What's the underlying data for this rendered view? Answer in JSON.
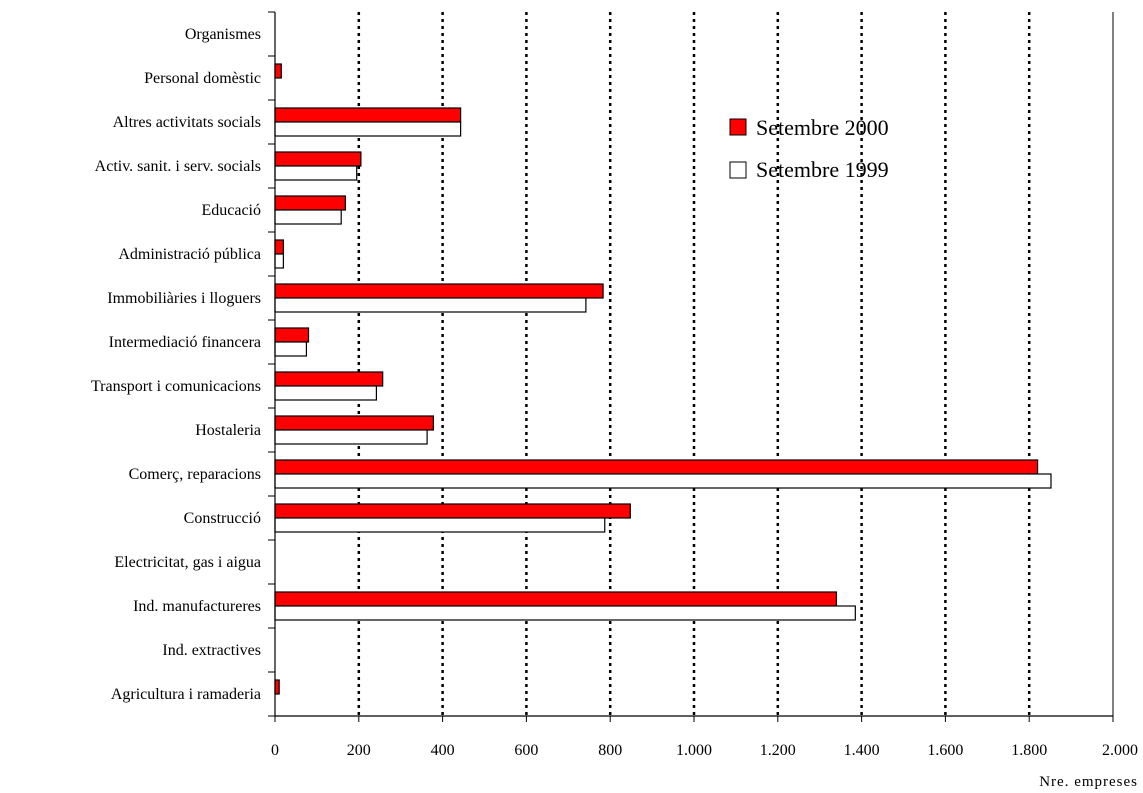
{
  "chart_data": {
    "type": "bar",
    "orientation": "horizontal",
    "categories": [
      "Organismes",
      "Personal domèstic",
      "Altres activitats socials",
      "Activ. sanit. i serv. socials",
      "Educació",
      "Administració pública",
      "Immobiliàries i lloguers",
      "Intermediació financera",
      "Transport i comunicacions",
      "Hostaleria",
      "Comerç, reparacions",
      "Construcció",
      "Electricitat, gas i aigua",
      "Ind. manufactureres",
      "Ind. extractives",
      "Agricultura i ramaderia"
    ],
    "series": [
      {
        "name": "Setembre 2000",
        "color": "#ff0000",
        "values": [
          0,
          15,
          443,
          205,
          168,
          20,
          783,
          80,
          257,
          378,
          1820,
          848,
          0,
          1340,
          0,
          10
        ]
      },
      {
        "name": "Setembre 1999",
        "color": "#ffffff",
        "values": [
          0,
          0,
          443,
          195,
          158,
          20,
          742,
          75,
          242,
          363,
          1852,
          787,
          0,
          1385,
          0,
          0
        ]
      }
    ],
    "xlim": [
      0,
      2000
    ],
    "xticks": [
      0,
      200,
      400,
      600,
      800,
      1000,
      1200,
      1400,
      1600,
      1800,
      2000
    ],
    "xtick_labels": [
      "0",
      "200",
      "400",
      "600",
      "800",
      "1.000",
      "1.200",
      "1.400",
      "1.600",
      "1.800",
      "2.000"
    ],
    "xlabel": "Nre. empreses",
    "grid": "vertical dotted",
    "legend_position": "top-right"
  }
}
